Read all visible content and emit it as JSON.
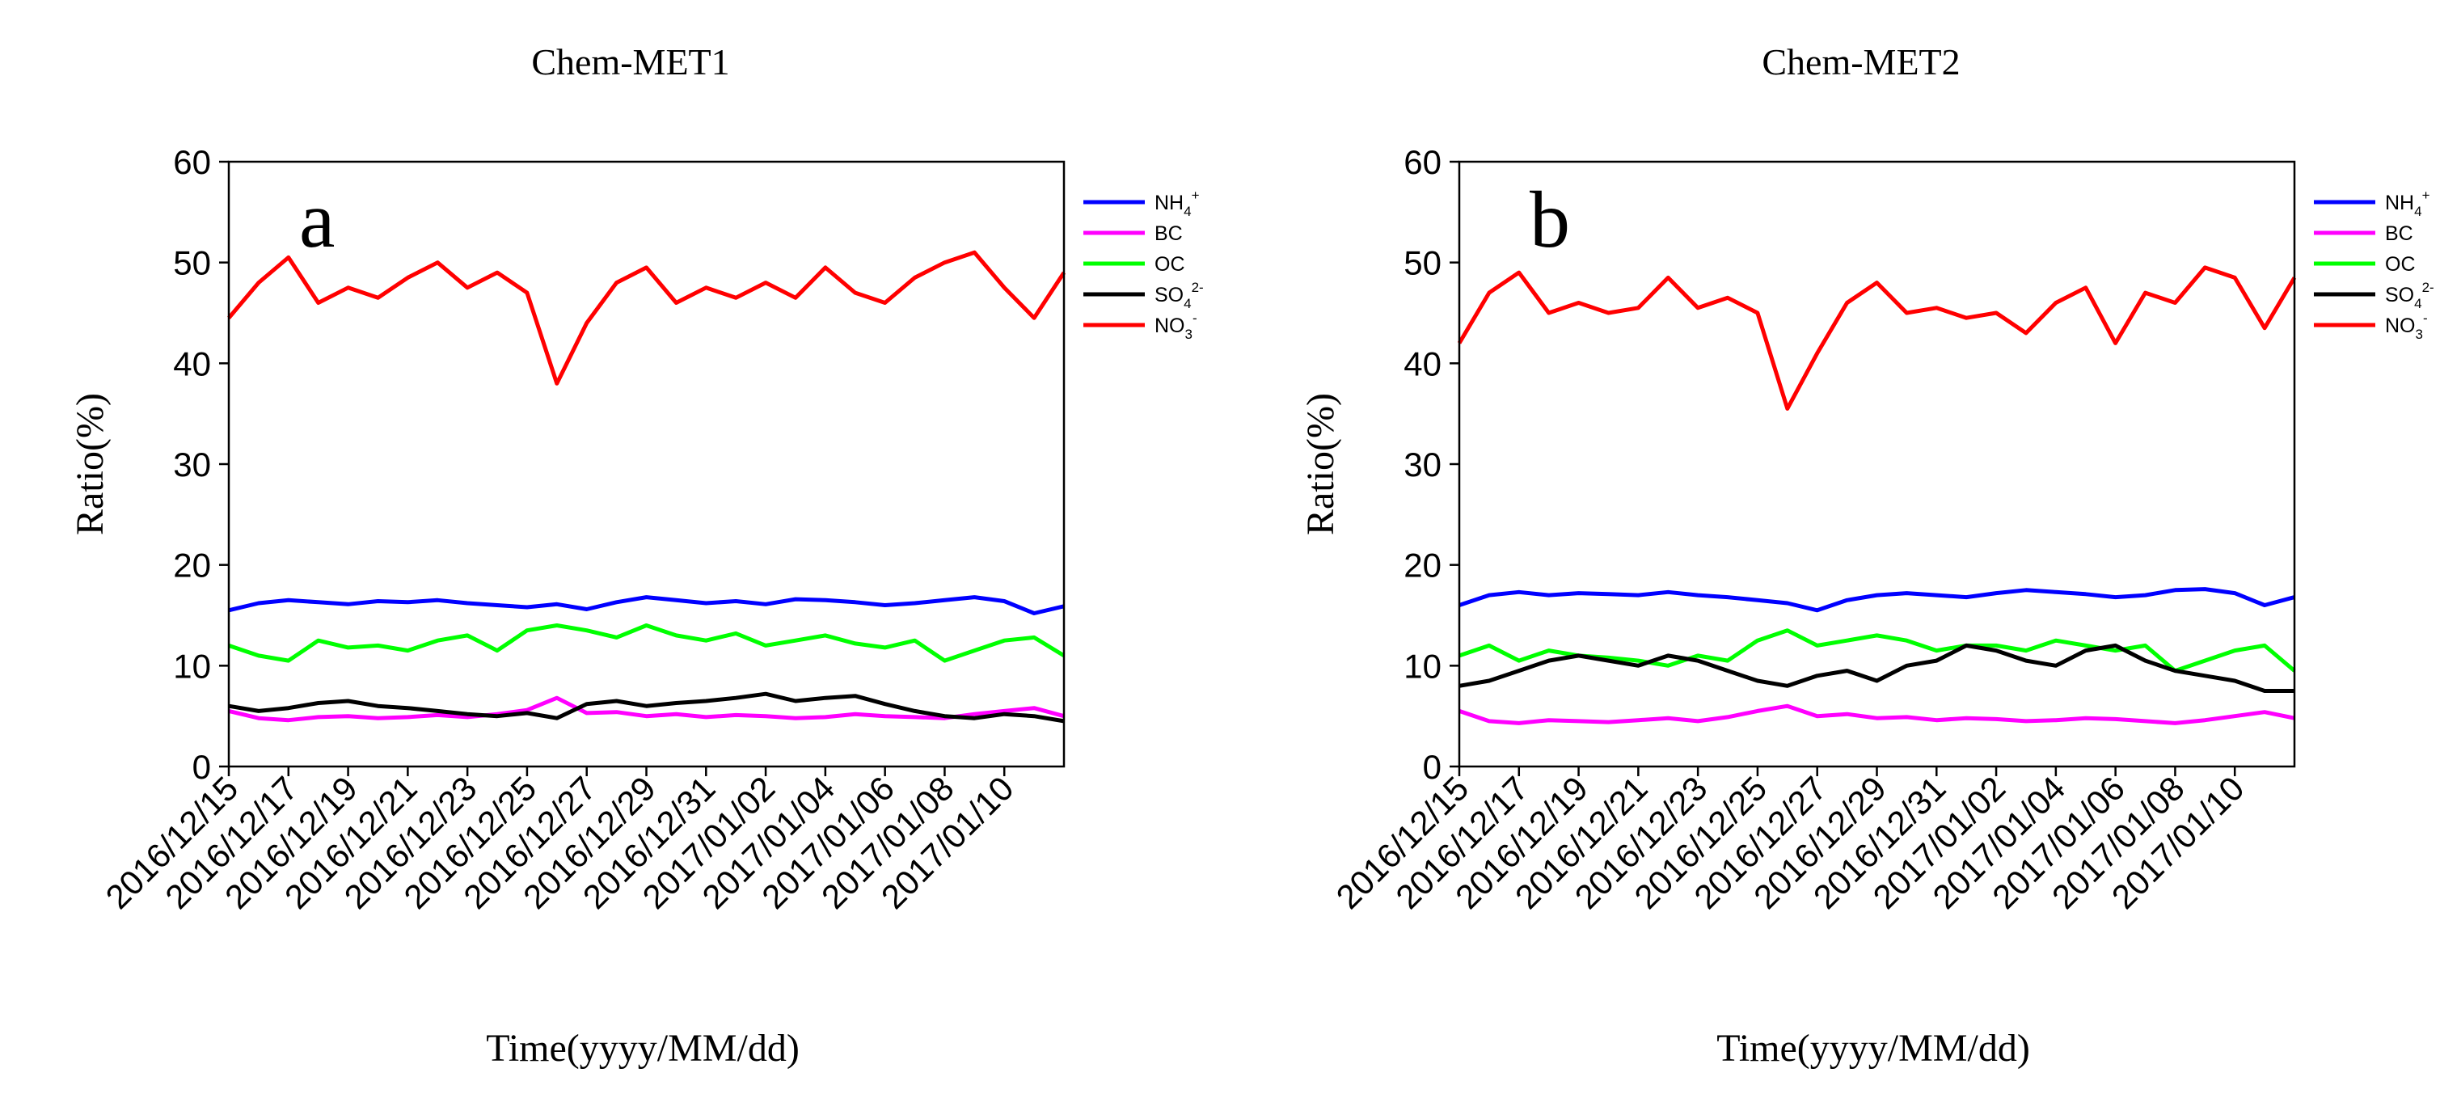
{
  "chart_data": [
    {
      "type": "line",
      "title": "Chem-MET1",
      "panel_label": "a",
      "xlabel": "Time(yyyy/MM/dd)",
      "ylabel": "Ratio(%)",
      "ylim": [
        0,
        60
      ],
      "yticks": [
        0,
        10,
        20,
        30,
        40,
        50,
        60
      ],
      "x_range_days": [
        0,
        28
      ],
      "x_tick_labels": [
        "2016/12/15",
        "2016/12/17",
        "2016/12/19",
        "2016/12/21",
        "2016/12/23",
        "2016/12/25",
        "2016/12/27",
        "2016/12/29",
        "2016/12/31",
        "2017/01/02",
        "2017/01/04",
        "2017/01/06",
        "2017/01/08",
        "2017/01/10"
      ],
      "legend_position": "outside-right-top",
      "series": [
        {
          "name": "NH4+",
          "label_base": "NH",
          "label_sub": "4",
          "label_sup": "+",
          "color": "#0000ff",
          "x": [
            0,
            1,
            2,
            3,
            4,
            5,
            6,
            7,
            8,
            9,
            10,
            11,
            12,
            13,
            14,
            15,
            16,
            17,
            18,
            19,
            20,
            21,
            22,
            23,
            24,
            25,
            26,
            27,
            28
          ],
          "y": [
            15.5,
            16.2,
            16.5,
            16.3,
            16.1,
            16.4,
            16.3,
            16.5,
            16.2,
            16.0,
            15.8,
            16.1,
            15.6,
            16.3,
            16.8,
            16.5,
            16.2,
            16.4,
            16.1,
            16.6,
            16.5,
            16.3,
            16.0,
            16.2,
            16.5,
            16.8,
            16.4,
            15.2,
            15.9
          ]
        },
        {
          "name": "BC",
          "label_base": "BC",
          "color": "#ff00ff",
          "x": [
            0,
            1,
            2,
            3,
            4,
            5,
            6,
            7,
            8,
            9,
            10,
            11,
            12,
            13,
            14,
            15,
            16,
            17,
            18,
            19,
            20,
            21,
            22,
            23,
            24,
            25,
            26,
            27,
            28
          ],
          "y": [
            5.5,
            4.8,
            4.6,
            4.9,
            5.0,
            4.8,
            4.9,
            5.1,
            4.9,
            5.2,
            5.6,
            6.8,
            5.3,
            5.4,
            5.0,
            5.2,
            4.9,
            5.1,
            5.0,
            4.8,
            4.9,
            5.2,
            5.0,
            4.9,
            4.8,
            5.2,
            5.5,
            5.8,
            5.0
          ]
        },
        {
          "name": "OC",
          "label_base": "OC",
          "color": "#00ff00",
          "x": [
            0,
            1,
            2,
            3,
            4,
            5,
            6,
            7,
            8,
            9,
            10,
            11,
            12,
            13,
            14,
            15,
            16,
            17,
            18,
            19,
            20,
            21,
            22,
            23,
            24,
            25,
            26,
            27,
            28
          ],
          "y": [
            12.0,
            11.0,
            10.5,
            12.5,
            11.8,
            12.0,
            11.5,
            12.5,
            13.0,
            11.5,
            13.5,
            14.0,
            13.5,
            12.8,
            14.0,
            13.0,
            12.5,
            13.2,
            12.0,
            12.5,
            13.0,
            12.2,
            11.8,
            12.5,
            10.5,
            11.5,
            12.5,
            12.8,
            11.0
          ]
        },
        {
          "name": "SO42-",
          "label_base": "SO",
          "label_sub": "4",
          "label_sup": "2-",
          "color": "#000000",
          "x": [
            0,
            1,
            2,
            3,
            4,
            5,
            6,
            7,
            8,
            9,
            10,
            11,
            12,
            13,
            14,
            15,
            16,
            17,
            18,
            19,
            20,
            21,
            22,
            23,
            24,
            25,
            26,
            27,
            28
          ],
          "y": [
            6.0,
            5.5,
            5.8,
            6.3,
            6.5,
            6.0,
            5.8,
            5.5,
            5.2,
            5.0,
            5.3,
            4.8,
            6.2,
            6.5,
            6.0,
            6.3,
            6.5,
            6.8,
            7.2,
            6.5,
            6.8,
            7.0,
            6.2,
            5.5,
            5.0,
            4.8,
            5.2,
            5.0,
            4.5
          ]
        },
        {
          "name": "NO3-",
          "label_base": "NO",
          "label_sub": "3",
          "label_sup": "-",
          "color": "#ff0000",
          "x": [
            0,
            1,
            2,
            3,
            4,
            5,
            6,
            7,
            8,
            9,
            10,
            11,
            12,
            13,
            14,
            15,
            16,
            17,
            18,
            19,
            20,
            21,
            22,
            23,
            24,
            25,
            26,
            27,
            28
          ],
          "y": [
            44.5,
            48.0,
            50.5,
            46.0,
            47.5,
            46.5,
            48.5,
            50.0,
            47.5,
            49.0,
            47.0,
            38.0,
            44.0,
            48.0,
            49.5,
            46.0,
            47.5,
            46.5,
            48.0,
            46.5,
            49.5,
            47.0,
            46.0,
            48.5,
            50.0,
            51.0,
            47.5,
            44.5,
            49.0
          ]
        }
      ]
    },
    {
      "type": "line",
      "title": "Chem-MET2",
      "panel_label": "b",
      "xlabel": "Time(yyyy/MM/dd)",
      "ylabel": "Ratio(%)",
      "ylim": [
        0,
        60
      ],
      "yticks": [
        0,
        10,
        20,
        30,
        40,
        50,
        60
      ],
      "x_range_days": [
        0,
        28
      ],
      "x_tick_labels": [
        "2016/12/15",
        "2016/12/17",
        "2016/12/19",
        "2016/12/21",
        "2016/12/23",
        "2016/12/25",
        "2016/12/27",
        "2016/12/29",
        "2016/12/31",
        "2017/01/02",
        "2017/01/04",
        "2017/01/06",
        "2017/01/08",
        "2017/01/10"
      ],
      "legend_position": "outside-right-top",
      "series": [
        {
          "name": "NH4+",
          "label_base": "NH",
          "label_sub": "4",
          "label_sup": "+",
          "color": "#0000ff",
          "x": [
            0,
            1,
            2,
            3,
            4,
            5,
            6,
            7,
            8,
            9,
            10,
            11,
            12,
            13,
            14,
            15,
            16,
            17,
            18,
            19,
            20,
            21,
            22,
            23,
            24,
            25,
            26,
            27,
            28
          ],
          "y": [
            16.0,
            17.0,
            17.3,
            17.0,
            17.2,
            17.1,
            17.0,
            17.3,
            17.0,
            16.8,
            16.5,
            16.2,
            15.5,
            16.5,
            17.0,
            17.2,
            17.0,
            16.8,
            17.2,
            17.5,
            17.3,
            17.1,
            16.8,
            17.0,
            17.5,
            17.6,
            17.2,
            16.0,
            16.8
          ]
        },
        {
          "name": "BC",
          "label_base": "BC",
          "color": "#ff00ff",
          "x": [
            0,
            1,
            2,
            3,
            4,
            5,
            6,
            7,
            8,
            9,
            10,
            11,
            12,
            13,
            14,
            15,
            16,
            17,
            18,
            19,
            20,
            21,
            22,
            23,
            24,
            25,
            26,
            27,
            28
          ],
          "y": [
            5.5,
            4.5,
            4.3,
            4.6,
            4.5,
            4.4,
            4.6,
            4.8,
            4.5,
            4.9,
            5.5,
            6.0,
            5.0,
            5.2,
            4.8,
            4.9,
            4.6,
            4.8,
            4.7,
            4.5,
            4.6,
            4.8,
            4.7,
            4.5,
            4.3,
            4.6,
            5.0,
            5.4,
            4.8
          ]
        },
        {
          "name": "OC",
          "label_base": "OC",
          "color": "#00ff00",
          "x": [
            0,
            1,
            2,
            3,
            4,
            5,
            6,
            7,
            8,
            9,
            10,
            11,
            12,
            13,
            14,
            15,
            16,
            17,
            18,
            19,
            20,
            21,
            22,
            23,
            24,
            25,
            26,
            27,
            28
          ],
          "y": [
            11.0,
            12.0,
            10.5,
            11.5,
            11.0,
            10.8,
            10.5,
            10.0,
            11.0,
            10.5,
            12.5,
            13.5,
            12.0,
            12.5,
            13.0,
            12.5,
            11.5,
            12.0,
            12.0,
            11.5,
            12.5,
            12.0,
            11.5,
            12.0,
            9.5,
            10.5,
            11.5,
            12.0,
            9.5
          ]
        },
        {
          "name": "SO42-",
          "label_base": "SO",
          "label_sub": "4",
          "label_sup": "2-",
          "color": "#000000",
          "x": [
            0,
            1,
            2,
            3,
            4,
            5,
            6,
            7,
            8,
            9,
            10,
            11,
            12,
            13,
            14,
            15,
            16,
            17,
            18,
            19,
            20,
            21,
            22,
            23,
            24,
            25,
            26,
            27,
            28
          ],
          "y": [
            8.0,
            8.5,
            9.5,
            10.5,
            11.0,
            10.5,
            10.0,
            11.0,
            10.5,
            9.5,
            8.5,
            8.0,
            9.0,
            9.5,
            8.5,
            10.0,
            10.5,
            12.0,
            11.5,
            10.5,
            10.0,
            11.5,
            12.0,
            10.5,
            9.5,
            9.0,
            8.5,
            7.5,
            7.5
          ]
        },
        {
          "name": "NO3-",
          "label_base": "NO",
          "label_sub": "3",
          "label_sup": "-",
          "color": "#ff0000",
          "x": [
            0,
            1,
            2,
            3,
            4,
            5,
            6,
            7,
            8,
            9,
            10,
            11,
            12,
            13,
            14,
            15,
            16,
            17,
            18,
            19,
            20,
            21,
            22,
            23,
            24,
            25,
            26,
            27,
            28
          ],
          "y": [
            42.0,
            47.0,
            49.0,
            45.0,
            46.0,
            45.0,
            45.5,
            48.5,
            45.5,
            46.5,
            45.0,
            35.5,
            41.0,
            46.0,
            48.0,
            45.0,
            45.5,
            44.5,
            45.0,
            43.0,
            46.0,
            47.5,
            42.0,
            47.0,
            46.0,
            49.5,
            48.5,
            43.5,
            48.5
          ]
        }
      ]
    }
  ]
}
